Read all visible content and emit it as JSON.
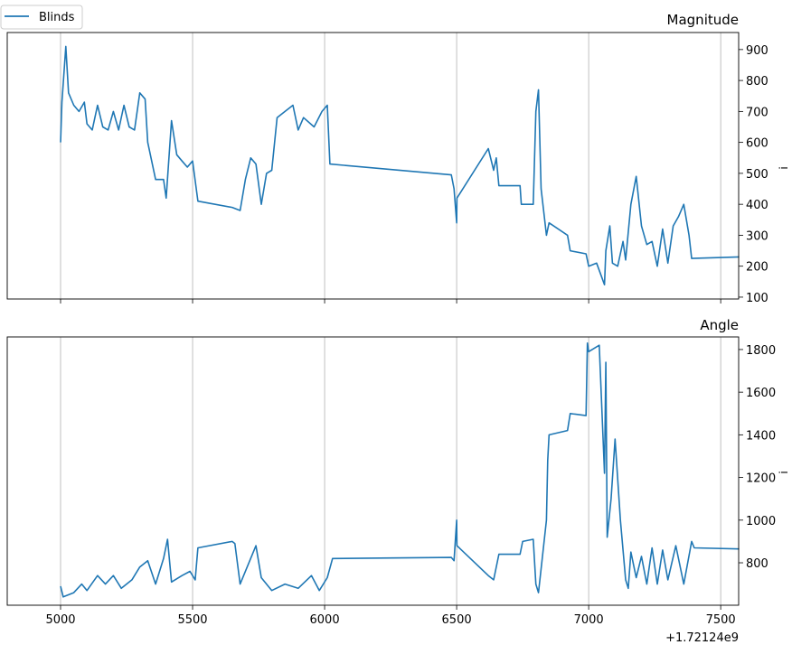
{
  "chart_data": [
    {
      "type": "line",
      "title": "Magnitude",
      "ylabel": "i",
      "x_offset_label": "+1.72124e9",
      "xlim": [
        4798,
        7568
      ],
      "ylim": [
        94,
        955
      ],
      "xticks": [
        5000,
        5500,
        6000,
        6500,
        7000,
        7500
      ],
      "yticks": [
        100,
        200,
        300,
        400,
        500,
        600,
        700,
        800,
        900
      ],
      "grid": "x-only",
      "legend": "top-left",
      "series": [
        {
          "name": "Blinds",
          "color": "#1f77b4",
          "x": [
            5000,
            5005,
            5020,
            5030,
            5050,
            5070,
            5090,
            5100,
            5120,
            5140,
            5160,
            5180,
            5200,
            5220,
            5240,
            5260,
            5280,
            5300,
            5320,
            5330,
            5360,
            5390,
            5400,
            5420,
            5440,
            5460,
            5480,
            5500,
            5520,
            5650,
            5680,
            5700,
            5720,
            5740,
            5760,
            5780,
            5800,
            5820,
            5850,
            5880,
            5900,
            5920,
            5960,
            5990,
            6010,
            6020,
            6480,
            6490,
            6500,
            6501,
            6620,
            6640,
            6650,
            6660,
            6740,
            6745,
            6790,
            6800,
            6810,
            6820,
            6840,
            6850,
            6920,
            6930,
            6990,
            7000,
            7030,
            7060,
            7065,
            7080,
            7090,
            7110,
            7130,
            7140,
            7160,
            7180,
            7200,
            7220,
            7240,
            7260,
            7280,
            7300,
            7320,
            7340,
            7360,
            7380,
            7390,
            7570
          ],
          "y": [
            600,
            730,
            910,
            760,
            720,
            700,
            730,
            660,
            640,
            720,
            650,
            640,
            700,
            640,
            720,
            650,
            640,
            760,
            740,
            600,
            480,
            480,
            420,
            670,
            560,
            540,
            520,
            540,
            410,
            390,
            380,
            480,
            550,
            530,
            400,
            500,
            510,
            680,
            700,
            720,
            640,
            680,
            650,
            700,
            720,
            530,
            495,
            450,
            340,
            420,
            580,
            510,
            550,
            460,
            460,
            400,
            400,
            700,
            770,
            450,
            300,
            340,
            300,
            250,
            240,
            200,
            210,
            140,
            250,
            330,
            210,
            200,
            280,
            220,
            400,
            490,
            330,
            270,
            280,
            200,
            320,
            210,
            330,
            360,
            400,
            300,
            225,
            230
          ]
        }
      ]
    },
    {
      "type": "line",
      "title": "Angle",
      "ylabel": "i",
      "x_offset_label": "+1.72124e9",
      "xlim": [
        4798,
        7568
      ],
      "ylim": [
        601,
        1859
      ],
      "xticks": [
        5000,
        5500,
        6000,
        6500,
        7000,
        7500
      ],
      "yticks": [
        800,
        1000,
        1200,
        1400,
        1600,
        1800
      ],
      "grid": "x-only",
      "series": [
        {
          "name": "Blinds",
          "color": "#1f77b4",
          "x": [
            5000,
            5010,
            5050,
            5080,
            5100,
            5140,
            5170,
            5200,
            5230,
            5270,
            5300,
            5330,
            5360,
            5390,
            5405,
            5420,
            5460,
            5490,
            5510,
            5520,
            5650,
            5660,
            5680,
            5740,
            5760,
            5800,
            5850,
            5900,
            5950,
            5980,
            6010,
            6030,
            6480,
            6490,
            6500,
            6501,
            6620,
            6640,
            6660,
            6740,
            6750,
            6790,
            6800,
            6810,
            6840,
            6845,
            6850,
            6920,
            6930,
            6990,
            6995,
            7000,
            7040,
            7060,
            7065,
            7070,
            7085,
            7100,
            7120,
            7140,
            7150,
            7160,
            7180,
            7200,
            7220,
            7240,
            7260,
            7280,
            7300,
            7330,
            7360,
            7390,
            7400,
            7570
          ],
          "y": [
            690,
            640,
            660,
            700,
            670,
            740,
            700,
            740,
            680,
            720,
            780,
            810,
            700,
            820,
            910,
            710,
            740,
            760,
            720,
            870,
            900,
            890,
            700,
            880,
            730,
            670,
            700,
            680,
            740,
            670,
            730,
            820,
            825,
            810,
            1000,
            880,
            740,
            720,
            840,
            840,
            900,
            910,
            700,
            660,
            1000,
            1280,
            1400,
            1420,
            1500,
            1490,
            1830,
            1790,
            1820,
            1220,
            1740,
            920,
            1100,
            1380,
            1000,
            720,
            680,
            850,
            730,
            830,
            700,
            870,
            700,
            860,
            720,
            880,
            700,
            900,
            870,
            865
          ]
        }
      ]
    }
  ]
}
